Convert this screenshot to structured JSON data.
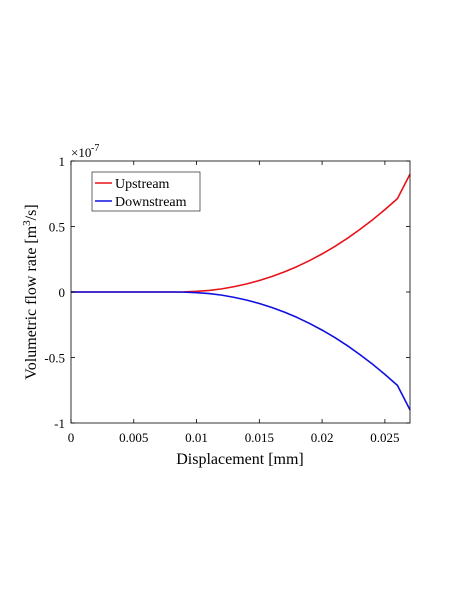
{
  "chart_data": {
    "type": "line",
    "xlabel": "Displacement [mm]",
    "ylabel": {
      "prefix": "Volumetric flow rate [m",
      "superscript": "3",
      "suffix": "/s]"
    },
    "y_multiplier": {
      "base": "×10",
      "exponent": "-7"
    },
    "xlim": [
      0,
      0.027
    ],
    "ylim": [
      -1,
      1
    ],
    "x_ticks": [
      0,
      0.005,
      0.01,
      0.015,
      0.02,
      0.025
    ],
    "x_tick_labels": [
      "0",
      "0.005",
      "0.01",
      "0.015",
      "0.02",
      "0.025"
    ],
    "y_ticks": [
      -1,
      -0.5,
      0,
      0.5,
      1
    ],
    "y_tick_labels": [
      "-1",
      "-0.5",
      "0",
      "0.5",
      "1"
    ],
    "grid": false,
    "legend_placement": "top-left",
    "x": [
      0,
      0.002,
      0.004,
      0.006,
      0.008,
      0.009,
      0.01,
      0.011,
      0.012,
      0.013,
      0.014,
      0.015,
      0.016,
      0.017,
      0.018,
      0.019,
      0.02,
      0.021,
      0.022,
      0.023,
      0.024,
      0.025,
      0.026,
      0.027
    ],
    "series": [
      {
        "name": "Upstream",
        "color": "#e8121b",
        "values": [
          0,
          0,
          0,
          0,
          0,
          0.001,
          0.005,
          0.012,
          0.024,
          0.041,
          0.062,
          0.088,
          0.118,
          0.154,
          0.194,
          0.24,
          0.291,
          0.347,
          0.409,
          0.477,
          0.55,
          0.629,
          0.713,
          0.9
        ]
      },
      {
        "name": "Downstream",
        "color": "#1010e0",
        "values": [
          0,
          0,
          0,
          0,
          0,
          -0.001,
          -0.005,
          -0.012,
          -0.024,
          -0.041,
          -0.062,
          -0.088,
          -0.118,
          -0.154,
          -0.194,
          -0.24,
          -0.291,
          -0.347,
          -0.409,
          -0.477,
          -0.55,
          -0.629,
          -0.713,
          -0.9
        ]
      }
    ]
  }
}
